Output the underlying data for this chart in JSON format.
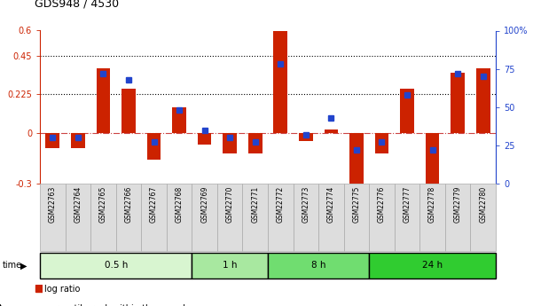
{
  "title": "GDS948 / 4530",
  "samples": [
    "GSM22763",
    "GSM22764",
    "GSM22765",
    "GSM22766",
    "GSM22767",
    "GSM22768",
    "GSM22769",
    "GSM22770",
    "GSM22771",
    "GSM22772",
    "GSM22773",
    "GSM22774",
    "GSM22775",
    "GSM22776",
    "GSM22777",
    "GSM22778",
    "GSM22779",
    "GSM22780"
  ],
  "log_ratio": [
    -0.09,
    -0.09,
    0.38,
    0.26,
    -0.16,
    0.15,
    -0.07,
    -0.12,
    -0.12,
    0.6,
    -0.05,
    0.02,
    -0.34,
    -0.12,
    0.26,
    -0.3,
    0.35,
    0.38
  ],
  "percentile_rank": [
    30,
    30,
    72,
    68,
    27,
    48,
    35,
    30,
    27,
    78,
    32,
    43,
    22,
    27,
    58,
    22,
    72,
    70
  ],
  "groups": [
    {
      "label": "0.5 h",
      "start": 0,
      "end": 6,
      "color": "#d8f5d0"
    },
    {
      "label": "1 h",
      "start": 6,
      "end": 9,
      "color": "#a8e8a0"
    },
    {
      "label": "8 h",
      "start": 9,
      "end": 13,
      "color": "#70dd70"
    },
    {
      "label": "24 h",
      "start": 13,
      "end": 18,
      "color": "#30cc30"
    }
  ],
  "ylim_left": [
    -0.3,
    0.6
  ],
  "ylim_right": [
    0,
    100
  ],
  "yticks_left": [
    -0.3,
    0,
    0.225,
    0.45,
    0.6
  ],
  "yticks_right": [
    0,
    25,
    50,
    75,
    100
  ],
  "hlines": [
    0.225,
    0.45
  ],
  "bar_color": "#cc2200",
  "dot_color": "#2244cc",
  "zero_line_color": "#cc4444",
  "label_bg_color": "#dddddd",
  "label_border_color": "#aaaaaa",
  "background_color": "#ffffff"
}
